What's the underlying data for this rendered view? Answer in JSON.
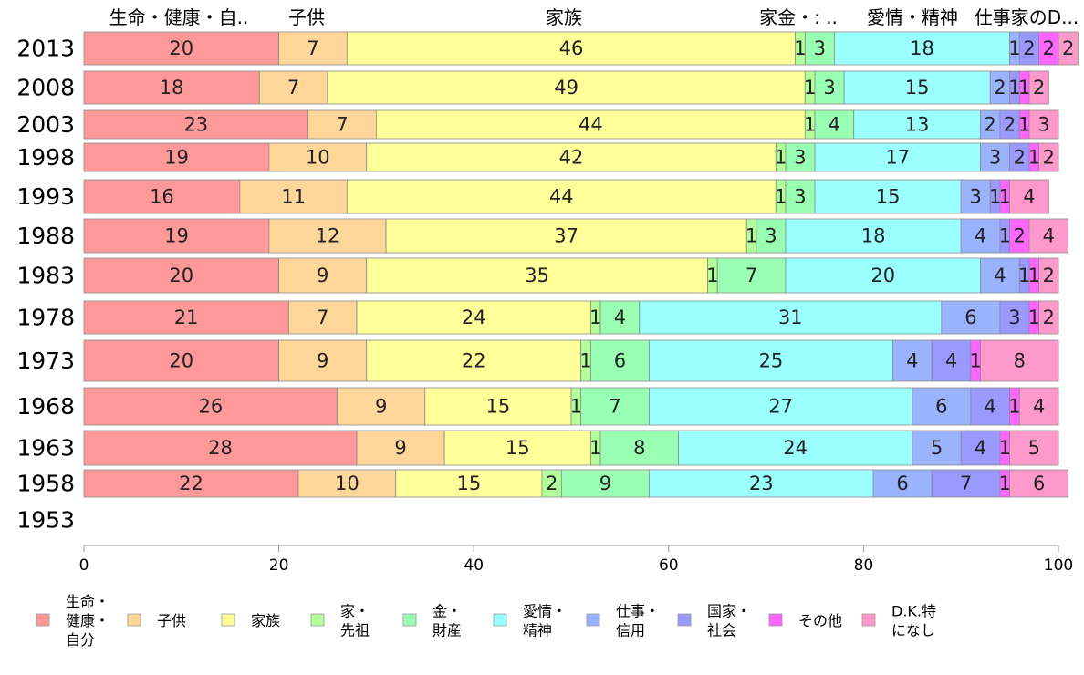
{
  "chart_data": {
    "type": "bar",
    "orientation": "horizontal",
    "stacked": true,
    "categories": [
      "2013",
      "2008",
      "2003",
      "1998",
      "1993",
      "1988",
      "1983",
      "1978",
      "1973",
      "1968",
      "1963",
      "1958",
      "1953"
    ],
    "series": [
      {
        "name": "生命・\n健康・\n自分",
        "color": "#ff9999",
        "values": [
          20,
          18,
          23,
          19,
          16,
          19,
          20,
          21,
          20,
          26,
          28,
          22,
          null
        ]
      },
      {
        "name": "子供",
        "color": "#ffd699",
        "values": [
          7,
          7,
          7,
          10,
          11,
          12,
          9,
          7,
          9,
          9,
          9,
          10,
          null
        ]
      },
      {
        "name": "家族",
        "color": "#ffff99",
        "values": [
          46,
          49,
          44,
          42,
          44,
          37,
          35,
          24,
          22,
          15,
          15,
          15,
          null
        ]
      },
      {
        "name": "家・\n先祖",
        "color": "#b3ff99",
        "values": [
          1,
          1,
          1,
          1,
          1,
          1,
          1,
          1,
          1,
          1,
          1,
          2,
          null
        ]
      },
      {
        "name": "金・\n財産",
        "color": "#99ffb3",
        "values": [
          3,
          3,
          4,
          3,
          3,
          3,
          7,
          4,
          6,
          7,
          8,
          9,
          null
        ]
      },
      {
        "name": "愛情・\n精神",
        "color": "#99ffff",
        "values": [
          18,
          15,
          13,
          17,
          15,
          18,
          20,
          31,
          25,
          27,
          24,
          23,
          null
        ]
      },
      {
        "name": "仕事・\n信用",
        "color": "#99b3ff",
        "values": [
          1,
          2,
          2,
          3,
          3,
          4,
          4,
          6,
          4,
          6,
          5,
          6,
          null
        ]
      },
      {
        "name": "国家・\n社会",
        "color": "#9999ff",
        "values": [
          2,
          1,
          2,
          2,
          1,
          1,
          1,
          3,
          4,
          4,
          4,
          7,
          null
        ]
      },
      {
        "name": "その他",
        "color": "#ff66ff",
        "values": [
          2,
          1,
          1,
          1,
          1,
          2,
          1,
          1,
          1,
          1,
          1,
          1,
          null
        ]
      },
      {
        "name": "D.K.特\nになし",
        "color": "#ff99cc",
        "values": [
          2,
          2,
          3,
          2,
          4,
          4,
          2,
          2,
          8,
          4,
          5,
          6,
          null
        ]
      }
    ],
    "top_labels": [
      "生命・健康・自..",
      "子供",
      "家族",
      "家金・: ..",
      "愛情・精神",
      "仕事家のD..."
    ],
    "xlim": [
      0,
      100
    ],
    "xticks": [
      0,
      20,
      40,
      60,
      80,
      100
    ],
    "grid": false,
    "legend_position": "bottom"
  }
}
